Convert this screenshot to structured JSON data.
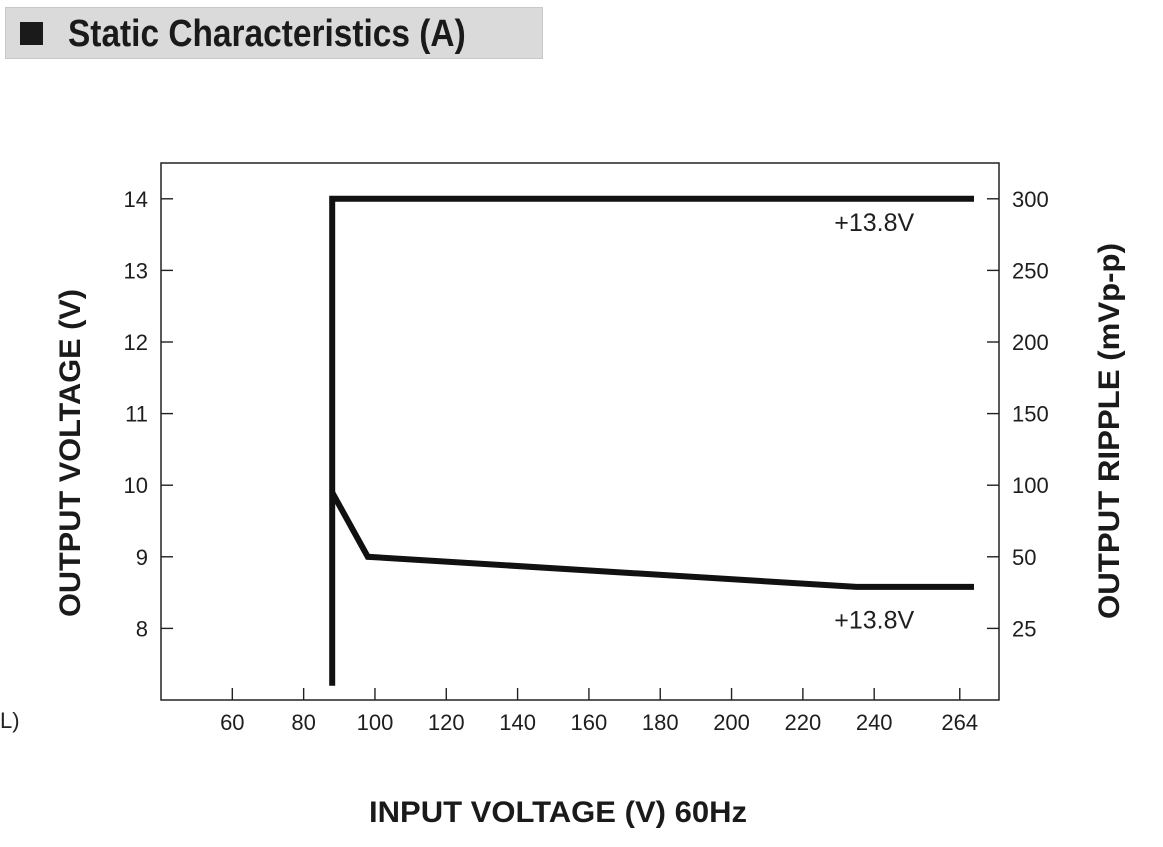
{
  "header": {
    "title": "Static Characteristics (A)",
    "stray_mark": "L)"
  },
  "chart_data": {
    "type": "line",
    "title": "Static Characteristics (A)",
    "xlabel": "INPUT VOLTAGE (V) 60Hz",
    "ylabel": "OUTPUT VOLTAGE (V)",
    "y2label": "OUTPUT RIPPLE (mVp-p)",
    "xlim": [
      40,
      275
    ],
    "ylim": [
      7,
      14.5
    ],
    "y2lim": [
      -25,
      325
    ],
    "xticks": [
      60,
      80,
      100,
      120,
      140,
      160,
      180,
      200,
      220,
      240,
      264
    ],
    "yticks": [
      8,
      9,
      10,
      11,
      12,
      13,
      14
    ],
    "y2ticks": [
      25,
      50,
      100,
      150,
      200,
      250,
      300
    ],
    "y2tick_positions": [
      8,
      9,
      10,
      11,
      12,
      13,
      14
    ],
    "grid": false,
    "series": [
      {
        "axis": "left",
        "x": [
          88,
          88,
          88,
          268
        ],
        "y": [
          7.2,
          14.0,
          14.0,
          14.0
        ]
      },
      {
        "axis": "left",
        "x": [
          88,
          98,
          235,
          268
        ],
        "y": [
          9.9,
          9.0,
          8.58,
          8.58
        ]
      }
    ],
    "annotations": [
      {
        "text": "+13.8V",
        "x": 240,
        "y": 13.55
      },
      {
        "text": "+13.8V",
        "x": 240,
        "y": 8.0
      }
    ],
    "colors": {
      "line": "#111111",
      "axis": "#222222",
      "header_bg": "#dadada"
    }
  }
}
